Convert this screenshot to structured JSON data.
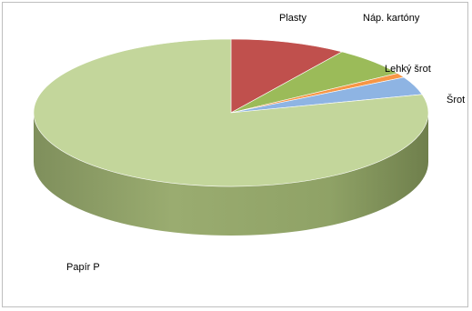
{
  "chart_data": {
    "type": "pie",
    "style": "3d-pie",
    "legend": "none",
    "categories": [
      "Plasty",
      "Náp. kartóny",
      "Lehký šrot",
      "Šrot",
      "Papír P"
    ],
    "values": [
      9.5,
      6.5,
      1.0,
      4.0,
      79.0
    ],
    "unit": "percent",
    "colors": [
      "#c0504d",
      "#9bbb59",
      "#f79646",
      "#8eb4e3",
      "#c3d69b"
    ],
    "labels": [
      "Plasty",
      "Náp. kartóny",
      "Lehký šrot",
      "Šrot",
      "Papír P"
    ]
  }
}
